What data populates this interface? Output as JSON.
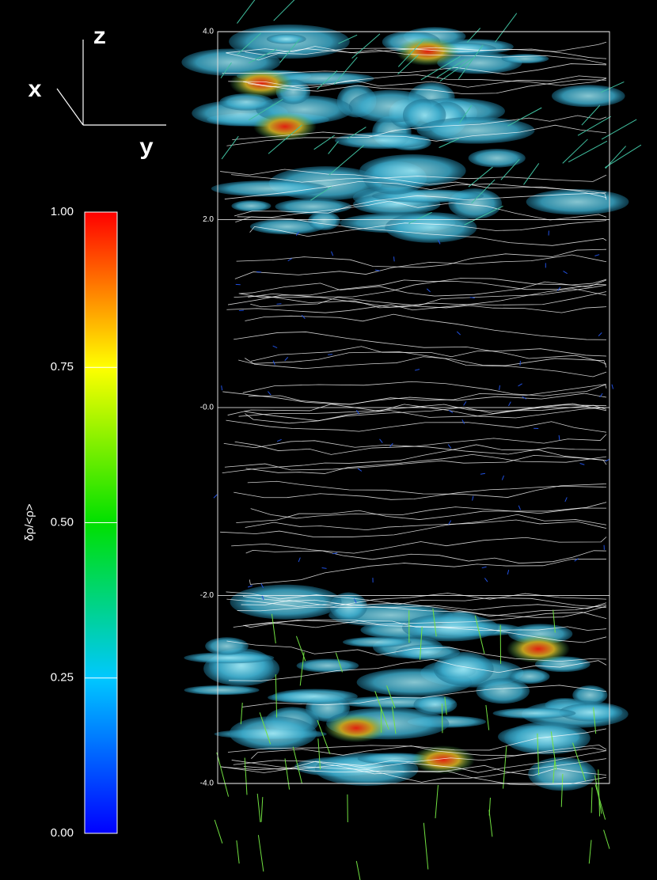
{
  "triad": {
    "x": "x",
    "y": "y",
    "z": "z"
  },
  "colorbar": {
    "label": "δρ/<ρ>",
    "lim": [
      0,
      1
    ],
    "ticks": [
      {
        "value": 0,
        "label": "0.00"
      },
      {
        "value": 0.25,
        "label": "0.25"
      },
      {
        "value": 0.5,
        "label": "0.50"
      },
      {
        "value": 0.75,
        "label": "0.75"
      },
      {
        "value": 1,
        "label": "1.00"
      }
    ]
  },
  "box_axis": {
    "lim": [
      -4,
      4
    ],
    "ticks": [
      {
        "value": 4,
        "label": "4.0"
      },
      {
        "value": 2,
        "label": "2.0"
      },
      {
        "value": 0,
        "label": "-0.0"
      },
      {
        "value": -2,
        "label": "-2.0"
      },
      {
        "value": -4,
        "label": "-4.0"
      }
    ]
  }
}
